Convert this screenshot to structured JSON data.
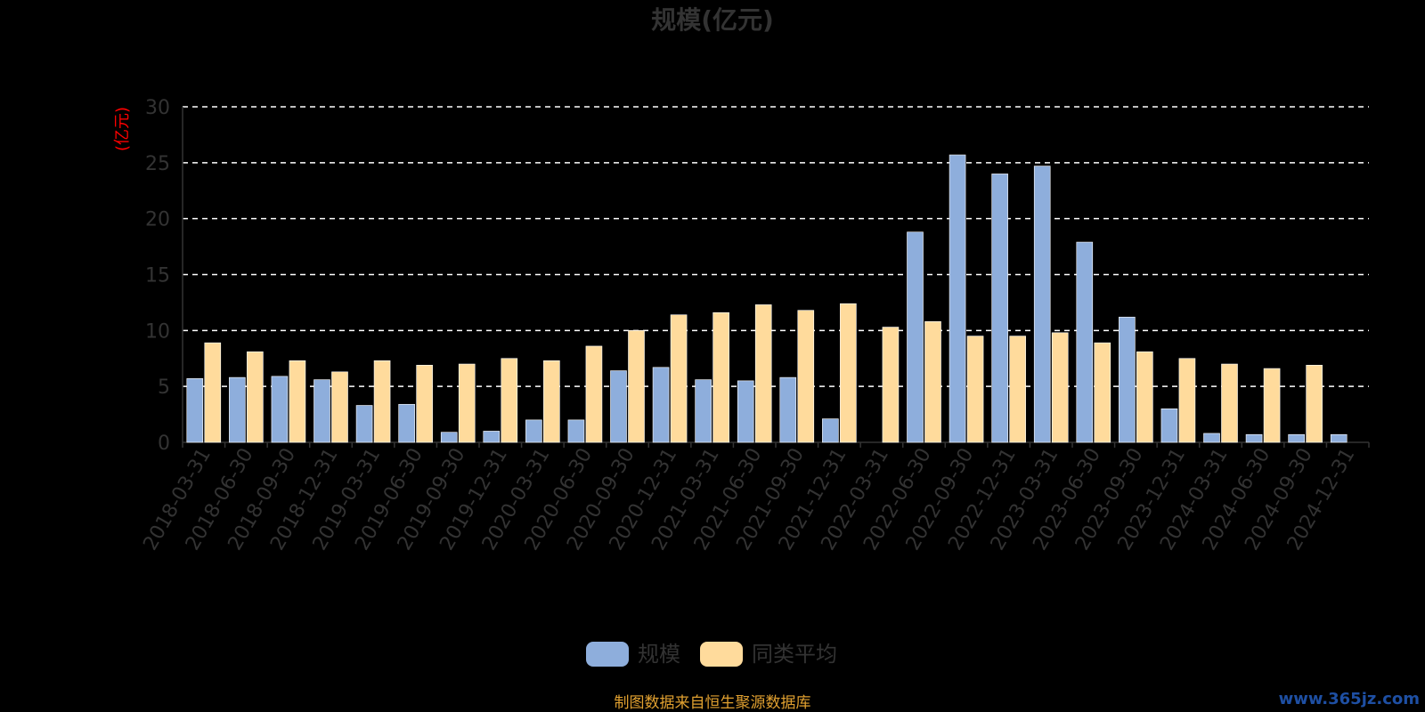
{
  "chart_data": {
    "type": "bar",
    "title": "规模(亿元)",
    "ylabel": "(亿元)",
    "xlabel": "",
    "ylim": [
      0,
      30
    ],
    "yticks": [
      0,
      5,
      10,
      15,
      20,
      25,
      30
    ],
    "grid": true,
    "legend_position": "bottom-center",
    "categories": [
      "2018-03-31",
      "2018-06-30",
      "2018-09-30",
      "2018-12-31",
      "2019-03-31",
      "2019-06-30",
      "2019-09-30",
      "2019-12-31",
      "2020-03-31",
      "2020-06-30",
      "2020-09-30",
      "2020-12-31",
      "2021-03-31",
      "2021-06-30",
      "2021-09-30",
      "2021-12-31",
      "2022-03-31",
      "2022-06-30",
      "2022-09-30",
      "2022-12-31",
      "2023-03-31",
      "2023-06-30",
      "2023-09-30",
      "2023-12-31",
      "2024-03-31",
      "2024-06-30",
      "2024-09-30",
      "2024-12-31"
    ],
    "series": [
      {
        "name": "规模",
        "color": "#8eaedc",
        "values": [
          5.7,
          5.8,
          5.9,
          5.6,
          3.3,
          3.4,
          0.9,
          1.0,
          2.0,
          2.0,
          6.4,
          6.7,
          5.6,
          5.5,
          5.8,
          2.1,
          null,
          18.8,
          25.7,
          24.0,
          24.7,
          17.9,
          11.2,
          3.0,
          0.8,
          0.7,
          0.7,
          0.7
        ]
      },
      {
        "name": "同类平均",
        "color": "#ffdb9c",
        "values": [
          8.9,
          8.1,
          7.3,
          6.3,
          7.3,
          6.9,
          7.0,
          7.5,
          7.3,
          8.6,
          10.0,
          11.4,
          11.6,
          12.3,
          11.8,
          12.4,
          10.3,
          10.8,
          9.5,
          9.5,
          9.8,
          8.9,
          8.1,
          7.5,
          7.0,
          6.6,
          6.9,
          null
        ]
      }
    ],
    "colors": {
      "background": "#000000",
      "text": "#333333",
      "ylabel": "#ff0000",
      "grid": "#ffffff",
      "axis": "#333333",
      "source_note": "#e0a030"
    }
  },
  "footer": {
    "source_note": "制图数据来自恒生聚源数据库",
    "watermark": "www.365jz.com"
  }
}
